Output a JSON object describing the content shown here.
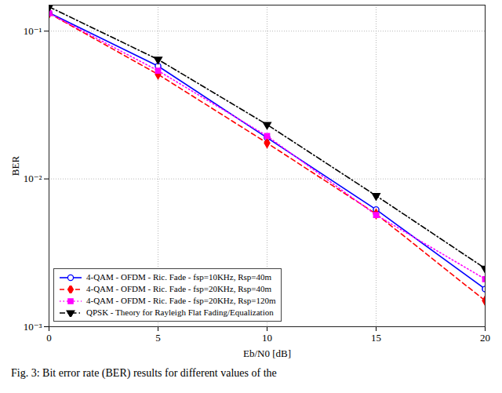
{
  "chart_data": {
    "type": "line",
    "x_label": "Eb/N0 [dB]",
    "y_label": "BER",
    "caption": "Fig. 3: Bit error rate (BER) results for different values of the",
    "x": [
      0,
      5,
      10,
      15,
      20
    ],
    "xlim": [
      0,
      20
    ],
    "xticks": [
      0,
      5,
      10,
      15,
      20
    ],
    "ylim": [
      0.001,
      0.15
    ],
    "yticks": [
      {
        "value": 0.001,
        "label": "10⁻³"
      },
      {
        "value": 0.01,
        "label": "10⁻²"
      },
      {
        "value": 0.1,
        "label": "10⁻¹"
      }
    ],
    "log": "y",
    "grid": true,
    "legend": "lower left",
    "series": [
      {
        "name": "4-QAM - OFDM - Ric. Fade - fsp=10KHz, Rsp=40m",
        "color": "#0000ff",
        "marker": "circle",
        "line_style": "solid",
        "values": [
          0.133,
          0.058,
          0.019,
          0.0062,
          0.0018
        ]
      },
      {
        "name": "4-QAM - OFDM - Ric. Fade - fsp=20KHz, Rsp=40m",
        "color": "#ff0000",
        "marker": "diamond",
        "line_style": "dashed",
        "values": [
          0.132,
          0.051,
          0.0175,
          0.0058,
          0.0015
        ]
      },
      {
        "name": "4-QAM - OFDM - Ric. Fade - fsp=20KHz, Rsp=120m",
        "color": "#ff00ff",
        "marker": "square",
        "line_style": "dotted",
        "values": [
          0.132,
          0.054,
          0.0195,
          0.0057,
          0.0021
        ]
      },
      {
        "name": "QPSK - Theory for Rayleigh Flat Fading/Equalization",
        "color": "#000000",
        "marker": "triangle-down",
        "line_style": "dashdot",
        "values": [
          0.146,
          0.0643,
          0.0233,
          0.0077,
          0.00248
        ]
      }
    ]
  }
}
